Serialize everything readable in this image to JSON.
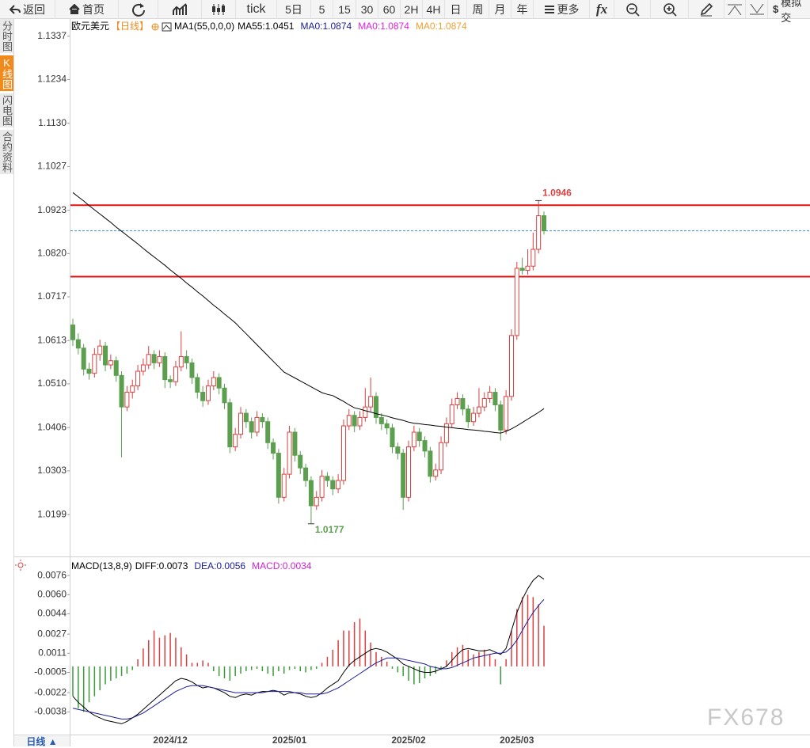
{
  "toolbar": {
    "back": "返回",
    "home": "首页",
    "periods": [
      "tick",
      "5日",
      "5",
      "15",
      "30",
      "60",
      "2H",
      "4H",
      "日",
      "周",
      "月",
      "年"
    ],
    "more": "更多",
    "fx": "fx",
    "demo": "模拟交"
  },
  "sidebar": [
    "分时图",
    "K线图",
    "闪电图",
    "合约资料"
  ],
  "period_button": "日线 ▲",
  "watermark": "FX678",
  "chart_data": [
    {
      "type": "candlestick",
      "title": "欧元美元",
      "period": "【日线】",
      "period_color": "#f08a1c",
      "indicator": "MA1(55,0,0,0)",
      "up_color": "#d94040",
      "down_color": "#5b9f4f",
      "ylim": [
        1.0105,
        1.1378
      ],
      "yticks": [
        1.1337,
        1.1234,
        {
          "value": 1.113,
          "label": "1.1130"
        },
        1.1027,
        1.0923,
        {
          "value": 1.082,
          "label": "1.0820"
        },
        1.0717,
        1.0613,
        {
          "value": 1.051,
          "label": "1.0510"
        },
        1.0406,
        1.0303,
        1.0199
      ],
      "categories": [
        null,
        null,
        null,
        null,
        null,
        null,
        null,
        null,
        null,
        null,
        null,
        null,
        null,
        null,
        null,
        null,
        null,
        null,
        "2024/12",
        null,
        null,
        null,
        null,
        null,
        null,
        null,
        null,
        null,
        null,
        null,
        null,
        null,
        null,
        null,
        null,
        null,
        null,
        null,
        null,
        null,
        "2025/01",
        null,
        null,
        null,
        null,
        null,
        null,
        null,
        null,
        null,
        null,
        null,
        null,
        null,
        null,
        null,
        null,
        null,
        null,
        null,
        null,
        null,
        "2025/02",
        null,
        null,
        null,
        null,
        null,
        null,
        null,
        null,
        null,
        null,
        null,
        null,
        null,
        null,
        null,
        null,
        null,
        null,
        null,
        "2025/03",
        null,
        null,
        null,
        null,
        null
      ],
      "open": [
        1.065,
        1.0615,
        1.0595,
        1.0545,
        1.0535,
        1.058,
        1.06,
        1.0555,
        1.0565,
        1.053,
        1.0455,
        1.049,
        1.0505,
        1.054,
        1.0555,
        1.058,
        1.056,
        1.0575,
        1.052,
        1.0515,
        1.055,
        1.0575,
        1.056,
        1.0525,
        1.049,
        1.047,
        1.0505,
        1.0525,
        1.05,
        1.0465,
        1.036,
        1.039,
        1.044,
        1.042,
        1.0395,
        1.043,
        1.042,
        1.037,
        1.0345,
        1.024,
        1.0295,
        1.0395,
        1.034,
        1.031,
        1.028,
        1.022,
        1.024,
        1.029,
        1.028,
        1.026,
        1.028,
        1.041,
        1.0435,
        1.041,
        1.043,
        1.0455,
        1.048,
        1.043,
        1.0415,
        1.0405,
        1.036,
        1.0345,
        1.024,
        1.036,
        1.0395,
        1.0375,
        1.035,
        1.029,
        1.0305,
        1.037,
        1.0415,
        1.046,
        1.0475,
        1.045,
        1.042,
        1.044,
        1.0455,
        1.0475,
        1.049,
        1.046,
        1.04,
        1.048,
        1.0625,
        1.0785,
        1.078,
        1.079,
        1.083,
        1.091
      ],
      "high": [
        1.0665,
        1.063,
        1.0605,
        1.056,
        1.0595,
        1.0615,
        1.061,
        1.058,
        1.0575,
        1.054,
        1.0505,
        1.052,
        1.0555,
        1.057,
        1.06,
        1.059,
        1.059,
        1.0585,
        1.053,
        1.0565,
        1.0635,
        1.059,
        1.057,
        1.0535,
        1.0505,
        1.052,
        1.054,
        1.0535,
        1.051,
        1.0475,
        1.0405,
        1.0455,
        1.045,
        1.043,
        1.0445,
        1.044,
        1.043,
        1.038,
        1.0355,
        1.031,
        1.041,
        1.0405,
        1.035,
        1.032,
        1.029,
        1.0255,
        1.0305,
        1.03,
        1.029,
        1.0295,
        1.0425,
        1.045,
        1.0445,
        1.0445,
        1.05,
        1.0525,
        1.049,
        1.044,
        1.0425,
        1.0415,
        1.037,
        1.0355,
        1.0375,
        1.041,
        1.0405,
        1.0385,
        1.036,
        1.032,
        1.0385,
        1.043,
        1.0475,
        1.049,
        1.0485,
        1.046,
        1.0455,
        1.05,
        1.049,
        1.0505,
        1.05,
        1.047,
        1.0495,
        1.064,
        1.08,
        1.081,
        1.083,
        1.087,
        1.0946,
        1.092
      ],
      "low": [
        1.06,
        1.058,
        1.053,
        1.052,
        1.0525,
        1.0565,
        1.054,
        1.0545,
        1.0515,
        1.0335,
        1.0445,
        1.0475,
        1.0495,
        1.053,
        1.0545,
        1.0545,
        1.055,
        1.05,
        1.05,
        1.0505,
        1.054,
        1.0545,
        1.051,
        1.0475,
        1.0455,
        1.046,
        1.0495,
        1.0485,
        1.045,
        1.0345,
        1.035,
        1.038,
        1.0405,
        1.038,
        1.0385,
        1.0405,
        1.0355,
        1.033,
        1.0225,
        1.023,
        1.0285,
        1.0325,
        1.0295,
        1.0265,
        1.0177,
        1.021,
        1.023,
        1.0265,
        1.0245,
        1.025,
        1.027,
        1.04,
        1.0395,
        1.04,
        1.042,
        1.0445,
        1.0415,
        1.04,
        1.039,
        1.0345,
        1.033,
        1.021,
        1.023,
        1.035,
        1.036,
        1.0335,
        1.0275,
        1.028,
        1.0295,
        1.036,
        1.0405,
        1.045,
        1.0435,
        1.0405,
        1.041,
        1.043,
        1.0445,
        1.0465,
        1.0445,
        1.0375,
        1.039,
        1.047,
        1.0615,
        1.077,
        1.077,
        1.078,
        1.082,
        1.0865
      ],
      "close": [
        1.0615,
        1.0595,
        1.0545,
        1.0535,
        1.058,
        1.06,
        1.0555,
        1.0565,
        1.053,
        1.0455,
        1.049,
        1.0505,
        1.054,
        1.0555,
        1.058,
        1.056,
        1.0575,
        1.052,
        1.0515,
        1.055,
        1.0575,
        1.056,
        1.0525,
        1.049,
        1.047,
        1.0505,
        1.0525,
        1.05,
        1.0465,
        1.036,
        1.039,
        1.044,
        1.042,
        1.0395,
        1.043,
        1.042,
        1.037,
        1.0345,
        1.024,
        1.0295,
        1.0395,
        1.034,
        1.031,
        1.028,
        1.022,
        1.024,
        1.029,
        1.028,
        1.026,
        1.028,
        1.041,
        1.0435,
        1.041,
        1.043,
        1.0455,
        1.048,
        1.043,
        1.0415,
        1.0405,
        1.036,
        1.0345,
        1.024,
        1.036,
        1.0395,
        1.0375,
        1.035,
        1.029,
        1.0305,
        1.037,
        1.0415,
        1.046,
        1.0475,
        1.045,
        1.042,
        1.044,
        1.0455,
        1.0475,
        1.049,
        1.046,
        1.04,
        1.048,
        1.0625,
        1.0785,
        1.078,
        1.079,
        1.083,
        1.091,
        1.0874
      ],
      "ma_series": [
        {
          "name": "MA55:1.0451",
          "color": "#000000",
          "values": [
            1.0965,
            1.0955,
            1.0945,
            1.0934,
            1.0924,
            1.0914,
            1.0904,
            1.0894,
            1.0883,
            1.0873,
            1.0863,
            1.0853,
            1.0843,
            1.0832,
            1.0822,
            1.0812,
            1.0802,
            1.0792,
            1.0781,
            1.0771,
            1.0761,
            1.075,
            1.074,
            1.0729,
            1.0719,
            1.0708,
            1.0697,
            1.0687,
            1.0676,
            1.0666,
            1.0655,
            1.0642,
            1.0629,
            1.0616,
            1.0603,
            1.059,
            1.0577,
            1.0564,
            1.0551,
            1.0538,
            1.0531,
            1.0524,
            1.0517,
            1.051,
            1.0503,
            1.0496,
            1.0489,
            1.0485,
            1.0482,
            1.0475,
            1.0468,
            1.046,
            1.0453,
            1.045,
            1.0446,
            1.0443,
            1.0439,
            1.0436,
            1.0433,
            1.0429,
            1.0426,
            1.0423,
            1.0419,
            1.0416,
            1.0415,
            1.0413,
            1.0412,
            1.041,
            1.0409,
            1.0407,
            1.0406,
            1.0404,
            1.0403,
            1.0401,
            1.04,
            1.0399,
            1.0397,
            1.0396,
            1.0394,
            1.0393,
            1.0397,
            1.0403,
            1.041,
            1.0418,
            1.0426,
            1.0434,
            1.0442,
            1.0451
          ]
        }
      ],
      "extra_labels": [
        {
          "name": "MA0:1.0874",
          "color": "#1c1c8c"
        },
        {
          "name": "MA0:1.0874",
          "color": "#e020e0"
        },
        {
          "name": "MA0:1.0874",
          "color": "#f0a030"
        }
      ],
      "hlines": [
        {
          "value": 1.0935,
          "color": "#e01010"
        },
        {
          "value": 1.0765,
          "color": "#e01010"
        }
      ],
      "current_price": {
        "value": 1.0874,
        "color": "#3a8fd0"
      }
    },
    {
      "type": "macd",
      "indicator": "MACD(13,8,9)",
      "ylim": [
        -0.0057,
        0.009
      ],
      "yticks": [
        0.0076,
        {
          "value": 0.006,
          "label": "0.0060"
        },
        0.0044,
        0.0027,
        0.0011,
        -0.0005,
        -0.0022,
        -0.0038
      ],
      "series": [
        {
          "name": "DIFF:0.0073",
          "type": "line",
          "color": "#000000",
          "values": [
            -0.0025,
            -0.003,
            -0.0034,
            -0.0038,
            -0.0041,
            -0.0043,
            -0.0045,
            -0.0046,
            -0.0047,
            -0.0048,
            -0.0046,
            -0.0043,
            -0.004,
            -0.0036,
            -0.0032,
            -0.0028,
            -0.0024,
            -0.002,
            -0.0016,
            -0.0012,
            -0.001,
            -0.0011,
            -0.0013,
            -0.0016,
            -0.0018,
            -0.0017,
            -0.0018,
            -0.002,
            -0.0022,
            -0.0025,
            -0.0026,
            -0.0024,
            -0.0023,
            -0.0024,
            -0.0022,
            -0.0021,
            -0.0021,
            -0.002,
            -0.0021,
            -0.0024,
            -0.0022,
            -0.0022,
            -0.0023,
            -0.0025,
            -0.0026,
            -0.0025,
            -0.0022,
            -0.0018,
            -0.0015,
            -0.0012,
            -0.0005,
            0.0001,
            0.0005,
            0.0008,
            0.0011,
            0.0014,
            0.0015,
            0.0014,
            0.0012,
            0.0009,
            0.0006,
            0.0002,
            0.0,
            -0.0002,
            -0.0004,
            -0.0005,
            -0.0005,
            -0.0004,
            -0.0002,
            0.0,
            0.0005,
            0.001,
            0.0014,
            0.0015,
            0.0014,
            0.0013,
            0.0013,
            0.0014,
            0.0012,
            0.001,
            0.0015,
            0.003,
            0.0045,
            0.0056,
            0.0065,
            0.0072,
            0.0076,
            0.0073
          ]
        },
        {
          "name": "DEA:0.0056",
          "type": "line",
          "color": "#1c1c9c",
          "values": [
            -0.0035,
            -0.0036,
            -0.0037,
            -0.0038,
            -0.0039,
            -0.004,
            -0.0041,
            -0.0042,
            -0.0043,
            -0.0044,
            -0.0044,
            -0.0043,
            -0.0041,
            -0.0039,
            -0.0036,
            -0.0033,
            -0.003,
            -0.0027,
            -0.0024,
            -0.0021,
            -0.0019,
            -0.0017,
            -0.0016,
            -0.0016,
            -0.0016,
            -0.0017,
            -0.0018,
            -0.0019,
            -0.002,
            -0.0021,
            -0.0022,
            -0.0022,
            -0.0022,
            -0.0022,
            -0.0022,
            -0.0022,
            -0.0021,
            -0.0021,
            -0.0021,
            -0.0021,
            -0.0021,
            -0.0022,
            -0.0022,
            -0.0023,
            -0.0023,
            -0.0023,
            -0.0023,
            -0.0022,
            -0.002,
            -0.0018,
            -0.0015,
            -0.0012,
            -0.0009,
            -0.0006,
            -0.0003,
            0.0,
            0.0003,
            0.0005,
            0.0007,
            0.0007,
            0.0007,
            0.0006,
            0.0005,
            0.0004,
            0.0003,
            0.0002,
            0.0,
            -0.0001,
            -0.0002,
            -0.0002,
            -0.0001,
            0.0001,
            0.0003,
            0.0005,
            0.0007,
            0.0008,
            0.0009,
            0.001,
            0.0011,
            0.0011,
            0.0012,
            0.0016,
            0.0022,
            0.003,
            0.0038,
            0.0045,
            0.0051,
            0.0056
          ]
        },
        {
          "name": "MACD:0.0034",
          "type": "bar",
          "color": "#d020d0",
          "up_color": "#d94040",
          "down_color": "#3a9a3a",
          "values": [
            -0.0025,
            -0.0035,
            -0.0038,
            -0.003,
            -0.0025,
            -0.002,
            -0.0015,
            -0.0012,
            -0.001,
            -0.0008,
            -0.0006,
            -0.0003,
            0.0006,
            0.0015,
            0.0022,
            0.003,
            0.0024,
            0.0026,
            0.0028,
            0.0024,
            0.0016,
            0.001,
            0.0003,
            0.0003,
            0.0005,
            0.0003,
            -0.0004,
            -0.0008,
            -0.001,
            -0.0012,
            -0.0008,
            -0.0006,
            -0.0004,
            -0.0003,
            -0.0002,
            -0.0004,
            -0.0006,
            -0.0008,
            -0.0004,
            -0.0006,
            -0.0003,
            -0.0002,
            -0.0004,
            -0.0005,
            -0.0003,
            -0.0002,
            0.0003,
            0.0008,
            0.0014,
            0.0022,
            0.003,
            0.003,
            0.0037,
            0.004,
            0.003,
            0.002,
            0.0012,
            0.0008,
            0.0004,
            -0.0002,
            -0.0005,
            -0.0008,
            -0.0012,
            -0.0015,
            -0.0014,
            -0.001,
            -0.0008,
            -0.0006,
            -0.0003,
            0.0005,
            0.0012,
            0.0016,
            0.0018,
            0.0014,
            0.001,
            0.0012,
            0.0014,
            0.001,
            0.0006,
            -0.0015,
            0.0006,
            0.003,
            0.0048,
            0.0058,
            0.006,
            0.0058,
            0.0052,
            0.0034
          ]
        }
      ]
    }
  ]
}
